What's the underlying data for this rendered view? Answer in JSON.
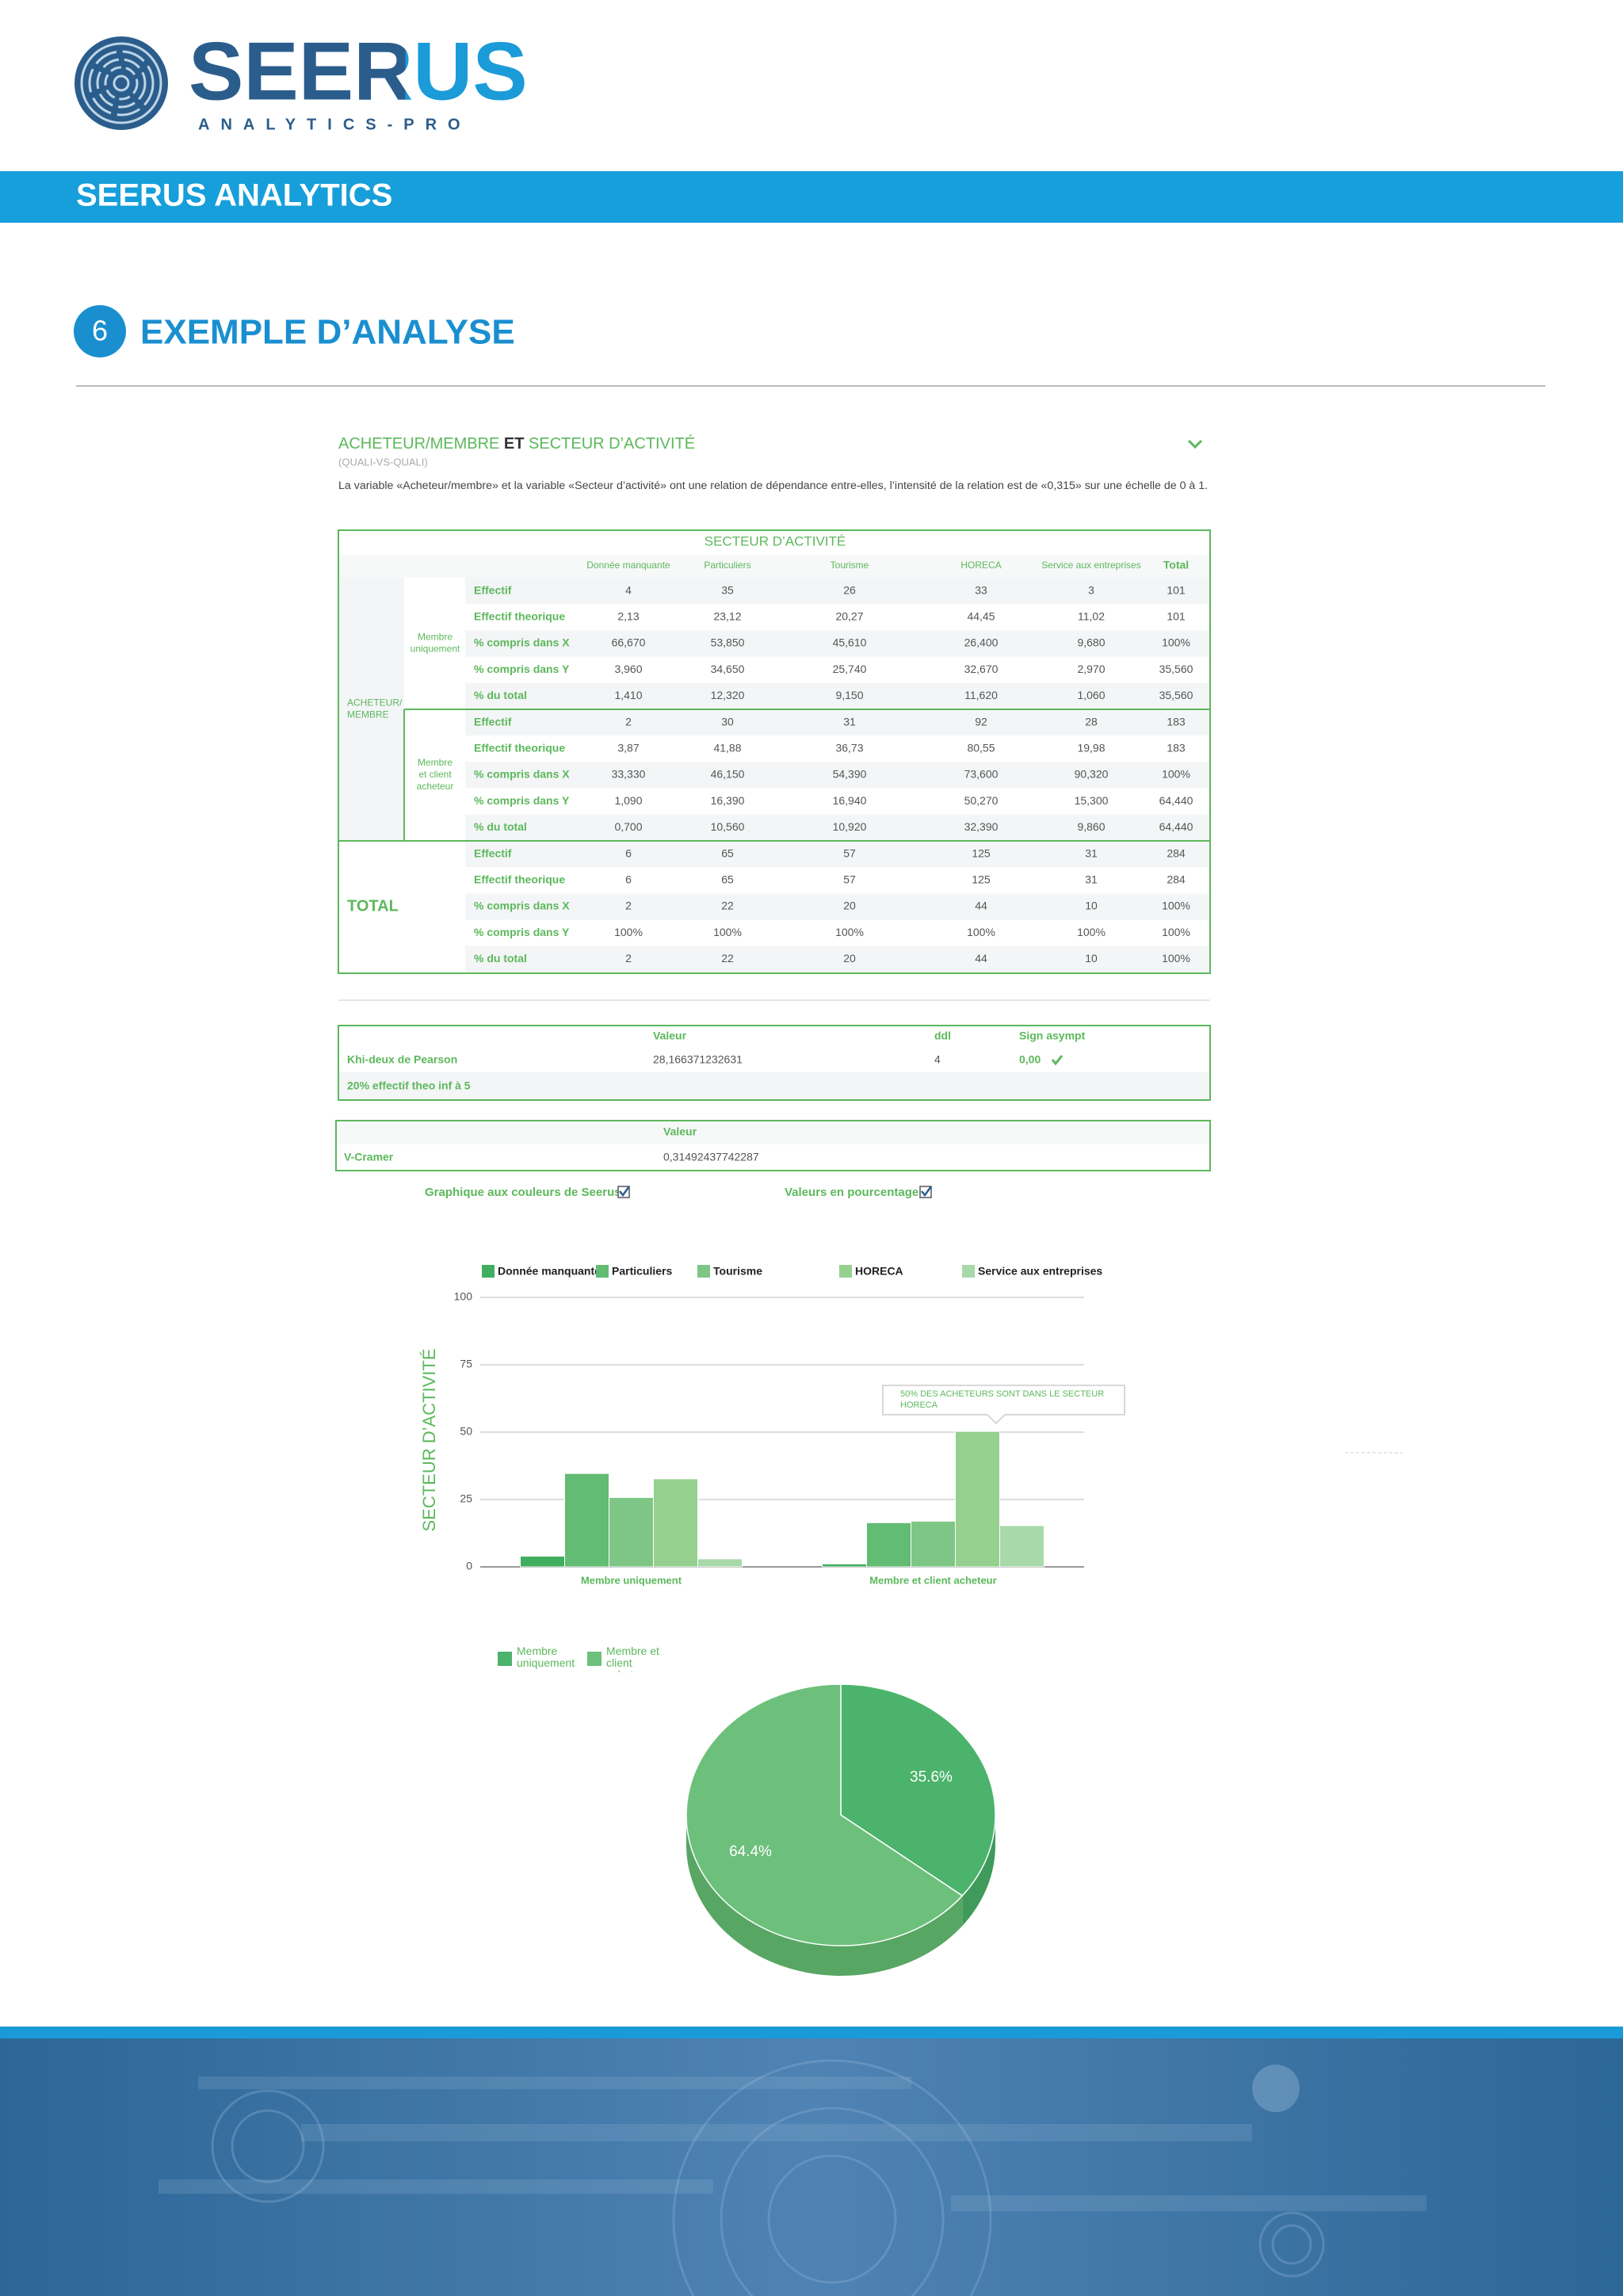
{
  "header": {
    "logo": "SEERUS",
    "logo_tagline": "ANALYTICS-PRO",
    "band_title": "SEERUS ANALYTICS"
  },
  "section": {
    "number": "6",
    "title": "EXEMPLE D’ANALYSE"
  },
  "analysis": {
    "title_part1": "ACHETEUR/MEMBRE",
    "title_part2": " ET ",
    "title_part3": "SECTEUR D’ACTIVITÉ",
    "subtitle": "(QUALI-VS-QUALI)",
    "description": "La variable «Acheteur/membre» et la variable «Secteur d’activité» ont une relation de dépendance entre-elles, l’intensité de la relation est de «0,315» sur une échelle de 0 à 1."
  },
  "table": {
    "header": "SECTEUR D’ACTIVITÉ",
    "columns": [
      "Donnée manquante",
      "Particuliers",
      "Tourisme",
      "HORECA",
      "Service aux entreprises",
      "Total"
    ],
    "outer_label": [
      "ACHETEUR/",
      "MEMBRE"
    ],
    "subgroups": [
      {
        "label": [
          "Membre",
          "uniquement"
        ],
        "rows": [
          {
            "label": "Effectif",
            "values": [
              "4",
              "35",
              "26",
              "33",
              "3",
              "101"
            ]
          },
          {
            "label": "Effectif theorique",
            "values": [
              "2,13",
              "23,12",
              "20,27",
              "44,45",
              "11,02",
              "101"
            ]
          },
          {
            "label": "% compris dans X",
            "values": [
              "66,670",
              "53,850",
              "45,610",
              "26,400",
              "9,680",
              "100%"
            ]
          },
          {
            "label": "% compris dans Y",
            "values": [
              "3,960",
              "34,650",
              "25,740",
              "32,670",
              "2,970",
              "35,560"
            ]
          },
          {
            "label": "% du total",
            "values": [
              "1,410",
              "12,320",
              "9,150",
              "11,620",
              "1,060",
              "35,560"
            ]
          }
        ]
      },
      {
        "label": [
          "Membre",
          "et client",
          "acheteur"
        ],
        "rows": [
          {
            "label": "Effectif",
            "values": [
              "2",
              "30",
              "31",
              "92",
              "28",
              "183"
            ]
          },
          {
            "label": "Effectif theorique",
            "values": [
              "3,87",
              "41,88",
              "36,73",
              "80,55",
              "19,98",
              "183"
            ]
          },
          {
            "label": "% compris dans X",
            "values": [
              "33,330",
              "46,150",
              "54,390",
              "73,600",
              "90,320",
              "100%"
            ]
          },
          {
            "label": "% compris dans Y",
            "values": [
              "1,090",
              "16,390",
              "16,940",
              "50,270",
              "15,300",
              "64,440"
            ]
          },
          {
            "label": "% du total",
            "values": [
              "0,700",
              "10,560",
              "10,920",
              "32,390",
              "9,860",
              "64,440"
            ]
          }
        ]
      }
    ],
    "total": {
      "label": "TOTAL",
      "rows": [
        {
          "label": "Effectif",
          "values": [
            "6",
            "65",
            "57",
            "125",
            "31",
            "284"
          ]
        },
        {
          "label": "Effectif theorique",
          "values": [
            "6",
            "65",
            "57",
            "125",
            "31",
            "284"
          ]
        },
        {
          "label": "% compris dans X",
          "values": [
            "2",
            "22",
            "20",
            "44",
            "10",
            "100%"
          ]
        },
        {
          "label": "% compris dans Y",
          "values": [
            "100%",
            "100%",
            "100%",
            "100%",
            "100%",
            "100%"
          ]
        },
        {
          "label": "% du total",
          "values": [
            "2",
            "22",
            "20",
            "44",
            "10",
            "100%"
          ]
        }
      ]
    }
  },
  "khi_table": {
    "columns": [
      "Valeur",
      "ddl",
      "Sign asympt"
    ],
    "row_label": "Khi-deux de Pearson",
    "values": [
      "28,166371232631",
      "4",
      "0,00"
    ],
    "note": "20% effectif theo inf à 5"
  },
  "cramer_table": {
    "column": "Valeur",
    "row_label": "V-Cramer",
    "value": "0,31492437742287"
  },
  "options": {
    "seerus_colors": "Graphique aux couleurs de Seerus :",
    "percent_values": "Valeurs en pourcentage"
  },
  "chart_data": [
    {
      "type": "bar",
      "y_label": "SECTEUR D’ACTIVITÉ",
      "categories": [
        "Membre uniquement",
        "Membre et client acheteur"
      ],
      "series": [
        {
          "name": "Donnée manquante",
          "color": "#3fae5e",
          "values": [
            3.96,
            1.09
          ]
        },
        {
          "name": "Particuliers",
          "color": "#62bc73",
          "values": [
            34.65,
            16.39
          ]
        },
        {
          "name": "Tourisme",
          "color": "#7ec685",
          "values": [
            25.74,
            16.94
          ]
        },
        {
          "name": "HORECA",
          "color": "#95d08f",
          "values": [
            32.67,
            50.27
          ]
        },
        {
          "name": "Service aux entreprises",
          "color": "#a8d9aa",
          "values": [
            2.97,
            15.3
          ]
        }
      ],
      "ylim": [
        0,
        100
      ],
      "yticks": [
        0,
        25,
        50,
        75,
        100
      ],
      "grid": true,
      "annotation": "50% DES ACHETEURS SONT DANS LE SECTEUR HORECA"
    },
    {
      "type": "pie",
      "categories": [
        "Membre uniquement",
        "Membre et client acheteur"
      ],
      "values": [
        35.6,
        64.4
      ],
      "value_labels": [
        "35.6%",
        "64.4%"
      ],
      "colors": [
        "#4bb36c",
        "#6dc07b"
      ],
      "side_colors": [
        "#3f9a5b",
        "#58a664"
      ]
    }
  ]
}
